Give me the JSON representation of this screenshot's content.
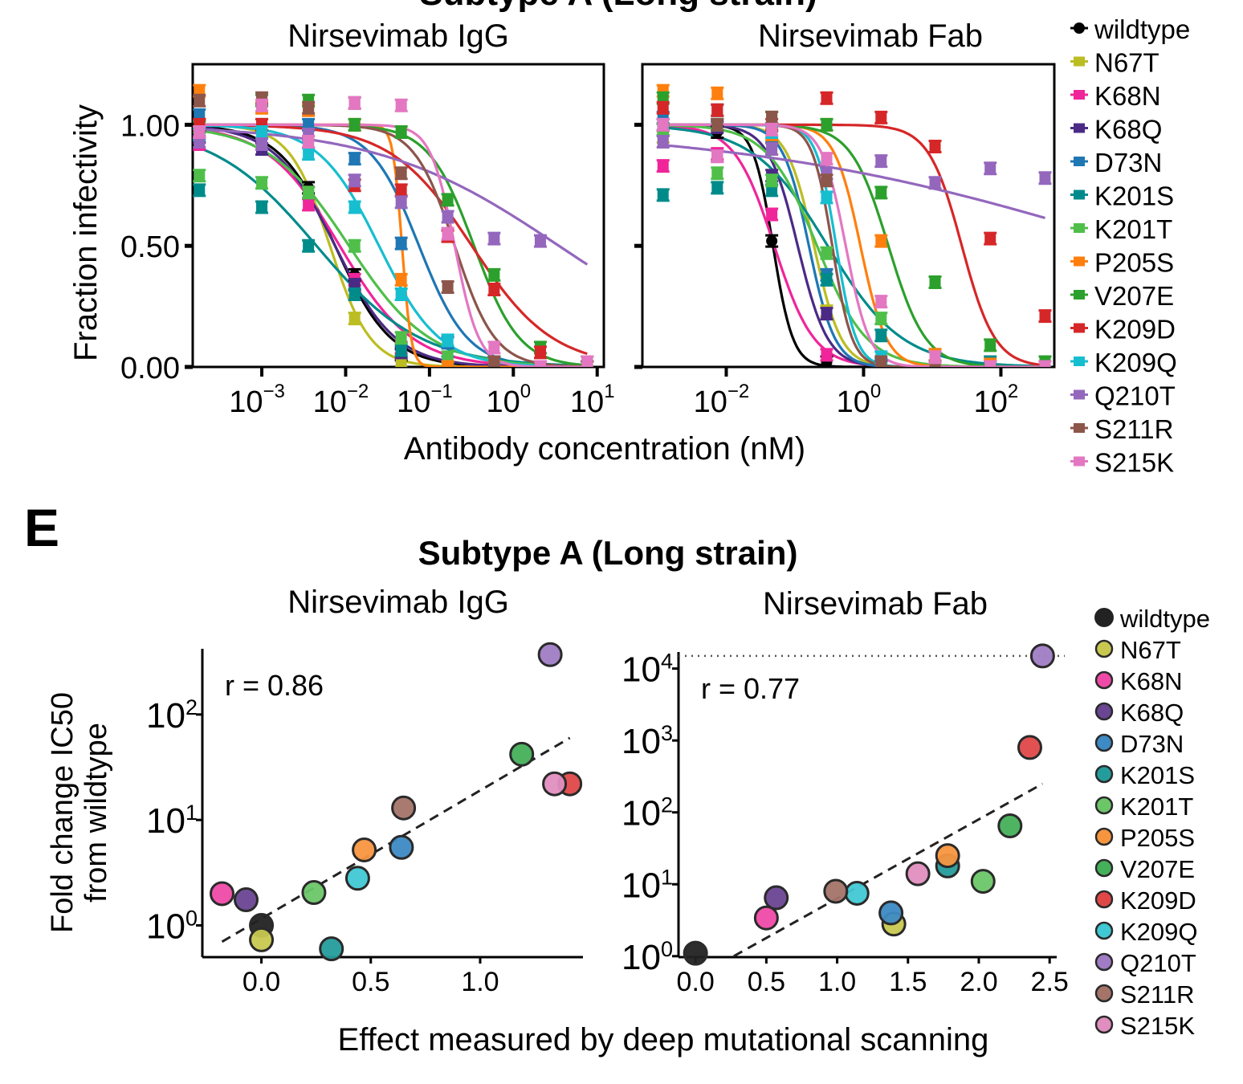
{
  "figure": {
    "top_title_partial": "Subtype A (Long strain)",
    "panel_e_label": "E",
    "panel_e_title": "Subtype A (Long strain)"
  },
  "variants": [
    {
      "name": "wildtype",
      "color": "#000000",
      "scatter_color": "#222222"
    },
    {
      "name": "N67T",
      "color": "#bcbd22",
      "scatter_color": "#c8c850"
    },
    {
      "name": "K68N",
      "color": "#f0259a",
      "scatter_color": "#ef4aa8"
    },
    {
      "name": "K68Q",
      "color": "#4b2a85",
      "scatter_color": "#6a4592"
    },
    {
      "name": "D73N",
      "color": "#1f77b4",
      "scatter_color": "#3d8ac4"
    },
    {
      "name": "K201S",
      "color": "#008b8b",
      "scatter_color": "#259c9c"
    },
    {
      "name": "K201T",
      "color": "#4fbf4a",
      "scatter_color": "#6cc668"
    },
    {
      "name": "P205S",
      "color": "#ff7f0e",
      "scatter_color": "#f7953f"
    },
    {
      "name": "V207E",
      "color": "#2ca02c",
      "scatter_color": "#45b05a"
    },
    {
      "name": "K209D",
      "color": "#d62728",
      "scatter_color": "#e04848"
    },
    {
      "name": "K209Q",
      "color": "#17becf",
      "scatter_color": "#40c8d4"
    },
    {
      "name": "Q210T",
      "color": "#9467bd",
      "scatter_color": "#a07cc4"
    },
    {
      "name": "S211R",
      "color": "#8c564b",
      "scatter_color": "#a47468"
    },
    {
      "name": "S215K",
      "color": "#e377c2",
      "scatter_color": "#e08ec0"
    }
  ],
  "chart_data": [
    {
      "id": "neut-igg",
      "type": "line",
      "title": "Nirsevimab IgG",
      "xlabel": "Antibody concentration (nM)",
      "ylabel": "Fraction infectivity",
      "xscale": "log10",
      "xlim": [
        0.00015,
        12
      ],
      "ylim": [
        0,
        1.25
      ],
      "xticks": [
        0.001,
        0.01,
        0.1,
        1,
        10
      ],
      "xtick_labels": [
        {
          "base": "10",
          "exp": "−3"
        },
        {
          "base": "10",
          "exp": "−2"
        },
        {
          "base": "10",
          "exp": "−1"
        },
        {
          "base": "10",
          "exp": "0"
        },
        {
          "base": "10",
          "exp": "1"
        }
      ],
      "yticks": [
        0,
        0.5,
        1.0
      ],
      "ytick_labels": [
        "0.00",
        "0.50",
        "1.00"
      ],
      "x": [
        0.00018,
        0.001,
        0.0036,
        0.0128,
        0.046,
        0.165,
        0.59,
        2.1,
        7.6
      ],
      "series": [
        {
          "name": "wildtype",
          "ic50": 0.0075,
          "hill": 1.3,
          "values": [
            1.0,
            0.92,
            0.74,
            0.38,
            0.05,
            null,
            null,
            null,
            null
          ]
        },
        {
          "name": "N67T",
          "ic50": 0.0065,
          "hill": 1.8,
          "values": [
            0.97,
            0.92,
            0.72,
            0.2,
            0.02,
            null,
            null,
            null,
            null
          ]
        },
        {
          "name": "K68N",
          "ic50": 0.0085,
          "hill": 1.0,
          "values": [
            0.92,
            0.9,
            0.67,
            0.36,
            0.08,
            0.0,
            0.0,
            0.0,
            0.0
          ]
        },
        {
          "name": "K68Q",
          "ic50": 0.0075,
          "hill": 1.2,
          "values": [
            0.95,
            0.9,
            0.72,
            0.34,
            0.06,
            0.0,
            0.0,
            0.0,
            0.0
          ]
        },
        {
          "name": "D73N",
          "ic50": 0.075,
          "hill": 1.5,
          "values": [
            1.04,
            1.0,
            1.0,
            0.86,
            0.51,
            0.1,
            0.02,
            0.0,
            0.0
          ]
        },
        {
          "name": "K201S",
          "ic50": 0.0045,
          "hill": 0.7,
          "values": [
            0.73,
            0.66,
            0.5,
            0.3,
            0.07,
            0.02,
            0.0,
            0.0,
            0.0
          ]
        },
        {
          "name": "K201T",
          "ic50": 0.011,
          "hill": 0.9,
          "values": [
            0.79,
            0.76,
            0.72,
            0.5,
            0.12,
            0.04,
            0.0,
            0.0,
            0.0
          ]
        },
        {
          "name": "P205S",
          "ic50": 0.047,
          "hill": 8,
          "values": [
            1.14,
            1.07,
            1.06,
            1.0,
            0.36,
            0.0,
            0.0,
            0.0,
            0.0
          ]
        },
        {
          "name": "V207E",
          "ic50": 0.34,
          "hill": 1.6,
          "values": [
            0.99,
            1.1,
            1.1,
            1.0,
            0.97,
            0.69,
            0.38,
            0.08,
            0.02
          ]
        },
        {
          "name": "K209D",
          "ic50": 0.32,
          "hill": 0.9,
          "values": [
            1.0,
            1.0,
            0.93,
            0.75,
            0.73,
            0.54,
            0.32,
            0.06,
            0.0
          ]
        },
        {
          "name": "K209Q",
          "ic50": 0.025,
          "hill": 1.2,
          "values": [
            0.96,
            0.97,
            0.88,
            0.66,
            0.3,
            0.11,
            0.02,
            0.0,
            0.0
          ]
        },
        {
          "name": "Q210T",
          "ic50": 3.5,
          "hill": 0.4,
          "values": [
            0.93,
            0.92,
            0.96,
            0.77,
            0.68,
            0.62,
            0.53,
            0.52,
            null
          ]
        },
        {
          "name": "S211R",
          "ic50": 0.2,
          "hill": 1.8,
          "values": [
            1.1,
            1.11,
            1.07,
            1.09,
            0.8,
            0.33,
            0.02,
            0.0,
            0.0
          ]
        },
        {
          "name": "S215K",
          "ic50": 0.2,
          "hill": 3,
          "values": [
            0.97,
            1.08,
            0.93,
            1.09,
            1.08,
            0.55,
            0.08,
            0.0,
            0.02
          ]
        }
      ]
    },
    {
      "id": "neut-fab",
      "type": "line",
      "title": "Nirsevimab Fab",
      "xlabel": "Antibody concentration (nM)",
      "ylabel": "Fraction infectivity",
      "xscale": "log10",
      "xlim": [
        0.0006,
        600
      ],
      "ylim": [
        0,
        1.25
      ],
      "xticks": [
        0.01,
        1,
        100
      ],
      "xtick_labels": [
        {
          "base": "10",
          "exp": "−2"
        },
        {
          "base": "10",
          "exp": "0"
        },
        {
          "base": "10",
          "exp": "2"
        }
      ],
      "yticks": [
        0,
        0.5,
        1.0
      ],
      "ytick_labels": [
        "",
        "",
        ""
      ],
      "x": [
        0.0012,
        0.0074,
        0.046,
        0.29,
        1.8,
        11,
        70,
        440
      ],
      "series": [
        {
          "name": "wildtype",
          "ic50": 0.048,
          "hill": 3,
          "values": [
            1.0,
            0.97,
            0.52,
            0.02,
            null,
            null,
            null,
            null
          ]
        },
        {
          "name": "N67T",
          "ic50": 0.19,
          "hill": 2.2,
          "values": [
            0.95,
            1.0,
            0.9,
            0.23,
            0.0,
            0.0,
            0.0,
            0.0
          ]
        },
        {
          "name": "K68N",
          "ic50": 0.05,
          "hill": 1.5,
          "values": [
            0.83,
            0.88,
            0.63,
            0.05,
            0.0,
            0.0,
            0.0,
            0.0
          ]
        },
        {
          "name": "K68Q",
          "ic50": 0.11,
          "hill": 2,
          "values": [
            0.98,
            0.99,
            0.79,
            0.22,
            0.0,
            0.0,
            0.0,
            0.0
          ]
        },
        {
          "name": "D73N",
          "ic50": 0.16,
          "hill": 2.3,
          "values": [
            1.03,
            1.06,
            0.95,
            0.38,
            0.01,
            0.0,
            0.0,
            0.0
          ]
        },
        {
          "name": "K201S",
          "ic50": 0.3,
          "hill": 0.8,
          "values": [
            0.71,
            0.74,
            0.73,
            0.36,
            0.13,
            0.05,
            0.02,
            0.0
          ]
        },
        {
          "name": "K201T",
          "ic50": 0.21,
          "hill": 1.2,
          "values": [
            0.98,
            0.8,
            0.77,
            0.47,
            0.2,
            0.05,
            0.0,
            0.0
          ]
        },
        {
          "name": "P205S",
          "ic50": 0.9,
          "hill": 2.3,
          "values": [
            1.14,
            1.13,
            0.96,
            1.0,
            0.52,
            0.05,
            0.01,
            0.0
          ]
        },
        {
          "name": "V207E",
          "ic50": 2.3,
          "hill": 1.6,
          "values": [
            1.11,
            1.0,
            1.03,
            1.0,
            0.72,
            0.35,
            0.09,
            0.02
          ]
        },
        {
          "name": "K209D",
          "ic50": 27,
          "hill": 1.8,
          "values": [
            1.07,
            1.06,
            1.0,
            1.11,
            1.03,
            0.91,
            0.53,
            0.21
          ]
        },
        {
          "name": "K209Q",
          "ic50": 0.4,
          "hill": 3,
          "values": [
            1.0,
            1.0,
            0.97,
            0.7,
            0.04,
            0.0,
            0.0,
            0.0
          ]
        },
        {
          "name": "Q210T",
          "ic50": 10000,
          "hill": 0.15,
          "values": [
            0.93,
            0.87,
            0.9,
            0.8,
            0.85,
            0.76,
            0.82,
            0.78
          ]
        },
        {
          "name": "S211R",
          "ic50": 0.35,
          "hill": 3,
          "values": [
            1.0,
            1.0,
            1.03,
            0.77,
            0.02,
            0.0,
            0.0,
            0.0
          ]
        },
        {
          "name": "S215K",
          "ic50": 0.55,
          "hill": 2.5,
          "values": [
            1.0,
            0.87,
            0.98,
            0.86,
            0.27,
            0.04,
            0.0,
            0.0
          ]
        }
      ]
    },
    {
      "id": "dms-igg",
      "type": "scatter",
      "title": "Nirsevimab IgG",
      "xlabel": "Effect measured by deep mutational scanning",
      "ylabel": "Fold change IC50 from wildtype",
      "yscale": "log10",
      "xlim": [
        -0.27,
        1.47
      ],
      "ylim": [
        0.5,
        420
      ],
      "xticks": [
        0.0,
        0.5,
        1.0
      ],
      "xtick_labels": [
        "0.0",
        "0.5",
        "1.0"
      ],
      "yticks": [
        1,
        10,
        100
      ],
      "ytick_labels": [
        {
          "base": "10",
          "exp": "0"
        },
        {
          "base": "10",
          "exp": "1"
        },
        {
          "base": "10",
          "exp": "2"
        }
      ],
      "annotation": "r = 0.86",
      "fit_line": {
        "x": [
          -0.18,
          1.41
        ],
        "y": [
          0.7,
          60
        ]
      },
      "points": [
        {
          "name": "wildtype",
          "x": 0.0,
          "y": 1.0
        },
        {
          "name": "N67T",
          "x": 0.0,
          "y": 0.73
        },
        {
          "name": "K68N",
          "x": -0.18,
          "y": 2.0
        },
        {
          "name": "K68Q",
          "x": -0.07,
          "y": 1.75
        },
        {
          "name": "D73N",
          "x": 0.64,
          "y": 5.5
        },
        {
          "name": "K201S",
          "x": 0.32,
          "y": 0.6
        },
        {
          "name": "K201T",
          "x": 0.24,
          "y": 2.05
        },
        {
          "name": "P205S",
          "x": 0.47,
          "y": 5.2
        },
        {
          "name": "V207E",
          "x": 1.19,
          "y": 42
        },
        {
          "name": "K209D",
          "x": 1.41,
          "y": 22
        },
        {
          "name": "K209Q",
          "x": 0.44,
          "y": 2.8
        },
        {
          "name": "Q210T",
          "x": 1.32,
          "y": 370
        },
        {
          "name": "S211R",
          "x": 0.65,
          "y": 13
        },
        {
          "name": "S215K",
          "x": 1.34,
          "y": 22
        }
      ]
    },
    {
      "id": "dms-fab",
      "type": "scatter",
      "title": "Nirsevimab Fab",
      "xlabel": "Effect measured by deep mutational scanning",
      "ylabel": "Fold change IC50 from wildtype",
      "yscale": "log10",
      "xlim": [
        -0.12,
        2.55
      ],
      "ylim": [
        0.97,
        17000
      ],
      "xticks": [
        0.0,
        0.5,
        1.0,
        1.5,
        2.0,
        2.5
      ],
      "xtick_labels": [
        "0.0",
        "0.5",
        "1.0",
        "1.5",
        "2.0",
        "2.5"
      ],
      "yticks": [
        1,
        10,
        100,
        1000,
        10000
      ],
      "ytick_labels": [
        {
          "base": "10",
          "exp": "0"
        },
        {
          "base": "10",
          "exp": "1"
        },
        {
          "base": "10",
          "exp": "2"
        },
        {
          "base": "10",
          "exp": "3"
        },
        {
          "base": "10",
          "exp": "4"
        }
      ],
      "annotation": "r = 0.77",
      "upper_limit_line": 15000,
      "fit_line": {
        "x": [
          0.27,
          2.45
        ],
        "y": [
          1.0,
          250
        ]
      },
      "points": [
        {
          "name": "wildtype",
          "x": 0.0,
          "y": 1.1
        },
        {
          "name": "N67T",
          "x": 1.4,
          "y": 2.8
        },
        {
          "name": "K68N",
          "x": 0.5,
          "y": 3.4
        },
        {
          "name": "K68Q",
          "x": 0.57,
          "y": 6.5
        },
        {
          "name": "D73N",
          "x": 1.38,
          "y": 4.0
        },
        {
          "name": "K201S",
          "x": 1.78,
          "y": 18
        },
        {
          "name": "K201T",
          "x": 2.03,
          "y": 11
        },
        {
          "name": "P205S",
          "x": 1.78,
          "y": 25
        },
        {
          "name": "V207E",
          "x": 2.22,
          "y": 65
        },
        {
          "name": "K209D",
          "x": 2.36,
          "y": 800
        },
        {
          "name": "K209Q",
          "x": 1.14,
          "y": 7.5
        },
        {
          "name": "Q210T",
          "x": 2.45,
          "y": 15000
        },
        {
          "name": "S211R",
          "x": 0.99,
          "y": 8
        },
        {
          "name": "S215K",
          "x": 1.57,
          "y": 14
        }
      ]
    }
  ]
}
